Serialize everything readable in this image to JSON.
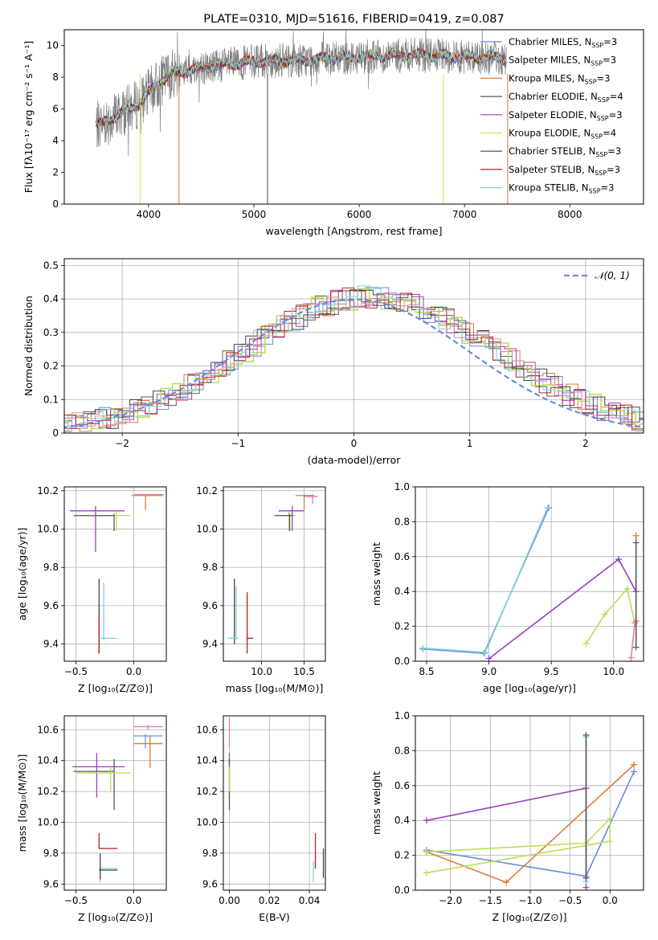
{
  "palette": [
    "#6a8cd8",
    "#8a7fd8",
    "#e07b39",
    "#5a5a5a",
    "#9b3fbf",
    "#d4e157",
    "#444444",
    "#b22222",
    "#7fd3dd",
    "#e27fb0",
    "#b8e05a"
  ],
  "chart_data": [
    {
      "id": "spectrum",
      "type": "line",
      "title": "PLATE=0310, MJD=51616, FIBERID=0419, z=0.087",
      "xlabel": "wavelength [Angstrom, rest frame]",
      "ylabel": "Flux [fλ10⁻¹⁷ erg cm⁻² s⁻¹ A⁻¹]",
      "xlim": [
        3200,
        8700
      ],
      "ylim": [
        0,
        11
      ],
      "xticks": [
        4000,
        5000,
        6000,
        7000,
        8000
      ],
      "yticks": [
        0,
        2,
        4,
        6,
        8,
        10
      ],
      "grid": false,
      "legend_position": "top-right",
      "continuum": [
        [
          3500,
          4.9
        ],
        [
          3700,
          5.6
        ],
        [
          3900,
          6.3
        ],
        [
          4000,
          7.0
        ],
        [
          4200,
          8.2
        ],
        [
          4500,
          8.6
        ],
        [
          5000,
          9.0
        ],
        [
          5500,
          9.1
        ],
        [
          6000,
          9.3
        ],
        [
          6500,
          9.4
        ],
        [
          7000,
          9.3
        ],
        [
          7400,
          9.2
        ]
      ],
      "series": [
        {
          "name": "Chabrier MILES, N_SSP=3",
          "color_index": 0
        },
        {
          "name": "Salpeter MILES, N_SSP=3",
          "color_index": 1
        },
        {
          "name": "Kroupa MILES, N_SSP=3",
          "color_index": 2
        },
        {
          "name": "Chabrier ELODIE, N_SSP=4",
          "color_index": 3
        },
        {
          "name": "Salpeter ELODIE, N_SSP=3",
          "color_index": 4
        },
        {
          "name": "Kroupa ELODIE, N_SSP=4",
          "color_index": 5
        },
        {
          "name": "Chabrier STELIB, N_SSP=3",
          "color_index": 6
        },
        {
          "name": "Salpeter STELIB, N_SSP=3",
          "color_index": 7
        },
        {
          "name": "Kroupa STELIB, N_SSP=3",
          "color_index": 8
        }
      ]
    },
    {
      "id": "residuals",
      "type": "line",
      "xlabel": "(data-model)/error",
      "ylabel": "Normed distribution",
      "xlim": [
        -2.5,
        2.5
      ],
      "ylim": [
        0,
        0.52
      ],
      "xticks": [
        -2,
        -1,
        0,
        1,
        2
      ],
      "yticks": [
        0.0,
        0.1,
        0.2,
        0.3,
        0.4,
        0.5
      ],
      "grid": true,
      "legend_position": "top-right",
      "gaussian_label": "𝒩(0, 1)",
      "gaussian_color": "#6a8cd8"
    },
    {
      "id": "age-Z",
      "type": "scatter",
      "xlabel": "Z [log₁₀(Z/Z⊙)]",
      "ylabel": "age  [log₁₀(age/yr)]",
      "xlim": [
        -0.6,
        0.28
      ],
      "ylim": [
        9.31,
        10.22
      ],
      "xticks": [
        -0.5,
        0.0
      ],
      "yticks": [
        9.4,
        9.6,
        9.8,
        10.0,
        10.2
      ],
      "grid": true,
      "points": [
        {
          "x": -0.33,
          "xlo": -0.55,
          "xhi": -0.08,
          "y": 10.095,
          "ylo": 9.88,
          "yhi": 10.12,
          "c": 4
        },
        {
          "x": -0.15,
          "xlo": -0.5,
          "xhi": -0.03,
          "y": 10.07,
          "ylo": 9.99,
          "yhi": 10.09,
          "c": 10
        },
        {
          "x": -0.17,
          "xlo": -0.52,
          "xhi": -0.17,
          "y": 10.07,
          "ylo": 9.99,
          "yhi": 10.08,
          "c": 3
        },
        {
          "x": 0.1,
          "xlo": -0.02,
          "xhi": 0.25,
          "y": 10.175,
          "ylo": 10.1,
          "yhi": 10.18,
          "c": 2
        },
        {
          "x": 0.12,
          "xlo": 0.0,
          "xhi": 0.26,
          "y": 10.18,
          "ylo": 10.17,
          "yhi": 10.18,
          "c": 9
        },
        {
          "x": -0.3,
          "xlo": -0.3,
          "xhi": -0.3,
          "y": 9.52,
          "ylo": 9.35,
          "yhi": 9.74,
          "c": 6
        },
        {
          "x": -0.3,
          "xlo": -0.3,
          "xhi": -0.3,
          "y": 9.45,
          "ylo": 9.35,
          "yhi": 9.56,
          "c": 7
        },
        {
          "x": -0.26,
          "xlo": -0.3,
          "xhi": -0.14,
          "y": 9.43,
          "ylo": 9.42,
          "yhi": 9.72,
          "c": 8
        }
      ]
    },
    {
      "id": "age-mass",
      "type": "scatter",
      "xlabel": "mass [log₁₀(M/M⊙)]",
      "xlim": [
        9.55,
        10.75
      ],
      "ylim": [
        9.31,
        10.22
      ],
      "xticks": [
        10.0,
        10.5
      ],
      "yticks": [
        9.4,
        9.6,
        9.8,
        10.0,
        10.2
      ],
      "grid": true,
      "points": [
        {
          "x": 10.36,
          "xlo": 10.2,
          "xhi": 10.5,
          "y": 10.095,
          "ylo": 9.99,
          "yhi": 10.12,
          "c": 4
        },
        {
          "x": 10.32,
          "xlo": 10.15,
          "xhi": 10.4,
          "y": 10.07,
          "ylo": 9.99,
          "yhi": 10.09,
          "c": 10
        },
        {
          "x": 10.33,
          "xlo": 10.15,
          "xhi": 10.37,
          "y": 10.07,
          "ylo": 9.99,
          "yhi": 10.08,
          "c": 3
        },
        {
          "x": 10.5,
          "xlo": 10.4,
          "xhi": 10.62,
          "y": 10.175,
          "ylo": 10.1,
          "yhi": 10.18,
          "c": 2
        },
        {
          "x": 10.6,
          "xlo": 10.5,
          "xhi": 10.66,
          "y": 10.17,
          "ylo": 10.13,
          "yhi": 10.18,
          "c": 9
        },
        {
          "x": 9.68,
          "xlo": 9.68,
          "xhi": 9.68,
          "y": 9.55,
          "ylo": 9.4,
          "yhi": 9.74,
          "c": 6
        },
        {
          "x": 9.83,
          "xlo": 9.83,
          "xhi": 9.9,
          "y": 9.43,
          "ylo": 9.35,
          "yhi": 9.67,
          "c": 7
        },
        {
          "x": 9.7,
          "xlo": 9.6,
          "xhi": 9.72,
          "y": 9.43,
          "ylo": 9.42,
          "yhi": 9.7,
          "c": 8
        }
      ]
    },
    {
      "id": "weight-age",
      "type": "line",
      "xlabel": "age  [log₁₀(age/yr)]",
      "ylabel": "mass weight",
      "xlim": [
        8.41,
        10.24
      ],
      "ylim": [
        0.0,
        1.0
      ],
      "xticks": [
        8.5,
        9.0,
        9.5,
        10.0
      ],
      "yticks": [
        0.0,
        0.2,
        0.4,
        0.6,
        0.8,
        1.0
      ],
      "grid": true,
      "lines": [
        {
          "c": 0,
          "pts": [
            [
              8.47,
              0.07
            ],
            [
              8.96,
              0.045
            ],
            [
              9.48,
              0.88
            ]
          ]
        },
        {
          "c": 8,
          "pts": [
            [
              8.47,
              0.075
            ],
            [
              8.97,
              0.05
            ],
            [
              9.47,
              0.88
            ]
          ]
        },
        {
          "c": 4,
          "pts": [
            [
              9.0,
              0.015
            ],
            [
              10.04,
              0.585
            ],
            [
              10.18,
              0.4
            ]
          ]
        },
        {
          "c": 10,
          "pts": [
            [
              9.78,
              0.1
            ],
            [
              9.93,
              0.27
            ],
            [
              10.11,
              0.415
            ],
            [
              10.17,
              0.22
            ]
          ]
        },
        {
          "c": 2,
          "pts": [
            [
              10.18,
              0.72
            ],
            [
              10.18,
              0.23
            ]
          ]
        },
        {
          "c": 9,
          "pts": [
            [
              10.14,
              0.02
            ],
            [
              10.17,
              0.22
            ]
          ]
        },
        {
          "c": 3,
          "pts": [
            [
              10.18,
              0.68
            ],
            [
              10.18,
              0.08
            ]
          ]
        }
      ]
    },
    {
      "id": "mass-Z",
      "type": "scatter",
      "xlabel": "Z [log₁₀(Z/Z⊙)]",
      "ylabel": "mass [log₁₀(M/M⊙)]",
      "xlim": [
        -0.6,
        0.28
      ],
      "ylim": [
        9.56,
        10.69
      ],
      "xticks": [
        -0.5,
        0.0
      ],
      "yticks": [
        9.6,
        9.8,
        10.0,
        10.2,
        10.4,
        10.6
      ],
      "grid": true,
      "points": [
        {
          "x": -0.32,
          "xlo": -0.53,
          "xhi": -0.08,
          "y": 10.36,
          "ylo": 10.16,
          "yhi": 10.45,
          "c": 4
        },
        {
          "x": -0.17,
          "xlo": -0.52,
          "xhi": -0.17,
          "y": 10.33,
          "ylo": 10.08,
          "yhi": 10.41,
          "c": 3
        },
        {
          "x": -0.2,
          "xlo": -0.5,
          "xhi": -0.03,
          "y": 10.32,
          "ylo": 10.2,
          "yhi": 10.36,
          "c": 10
        },
        {
          "x": 0.1,
          "xlo": 0.0,
          "xhi": 0.25,
          "y": 10.56,
          "ylo": 10.48,
          "yhi": 10.57,
          "c": 0
        },
        {
          "x": 0.14,
          "xlo": 0.0,
          "xhi": 0.25,
          "y": 10.51,
          "ylo": 10.35,
          "yhi": 10.56,
          "c": 2
        },
        {
          "x": 0.12,
          "xlo": 0.0,
          "xhi": 0.25,
          "y": 10.62,
          "ylo": 10.6,
          "yhi": 10.63,
          "c": 9
        },
        {
          "x": -0.3,
          "xlo": -0.3,
          "xhi": -0.14,
          "y": 9.83,
          "ylo": 9.83,
          "yhi": 9.93,
          "c": 7
        },
        {
          "x": -0.29,
          "xlo": -0.3,
          "xhi": -0.14,
          "y": 9.7,
          "ylo": 9.61,
          "yhi": 9.72,
          "c": 8
        },
        {
          "x": -0.29,
          "xlo": -0.3,
          "xhi": -0.14,
          "y": 9.69,
          "ylo": 9.63,
          "yhi": 9.8,
          "c": 6
        }
      ]
    },
    {
      "id": "mass-EBV",
      "type": "scatter",
      "xlabel": "E(B-V)",
      "xlim": [
        -0.003,
        0.048
      ],
      "ylim": [
        9.56,
        10.69
      ],
      "xticks": [
        0.0,
        0.02,
        0.04
      ],
      "yticks": [
        9.6,
        9.8,
        10.0,
        10.2,
        10.4,
        10.6
      ],
      "grid": true,
      "points": [
        {
          "x": 0.0,
          "xlo": 0.0,
          "xhi": 0.0,
          "y": 10.36,
          "ylo": 10.16,
          "yhi": 10.45,
          "c": 4
        },
        {
          "x": 0.0,
          "xlo": 0.0,
          "xhi": 0.0,
          "y": 10.33,
          "ylo": 10.08,
          "yhi": 10.41,
          "c": 3
        },
        {
          "x": 0.0,
          "xlo": 0.0,
          "xhi": 0.0,
          "y": 10.56,
          "ylo": 10.48,
          "yhi": 10.68,
          "c": 9
        },
        {
          "x": 0.0,
          "xlo": 0.0,
          "xhi": 0.0,
          "y": 10.3,
          "ylo": 10.2,
          "yhi": 10.36,
          "c": 10
        },
        {
          "x": 0.043,
          "xlo": 0.043,
          "xhi": 0.043,
          "y": 9.83,
          "ylo": 9.7,
          "yhi": 9.93,
          "c": 7
        },
        {
          "x": 0.047,
          "xlo": 0.047,
          "xhi": 0.047,
          "y": 9.7,
          "ylo": 9.64,
          "yhi": 9.83,
          "c": 6
        },
        {
          "x": 0.042,
          "xlo": 0.042,
          "xhi": 0.042,
          "y": 9.7,
          "ylo": 9.61,
          "yhi": 9.75,
          "c": 8
        }
      ]
    },
    {
      "id": "weight-Z",
      "type": "line",
      "xlabel": "Z [log₁₀(Z/Z⊙)]",
      "ylabel": "mass weight",
      "xlim": [
        -2.44,
        0.42
      ],
      "ylim": [
        0.0,
        1.0
      ],
      "xticks": [
        -2.0,
        -1.5,
        -1.0,
        -0.5,
        0.0
      ],
      "yticks": [
        0.0,
        0.2,
        0.4,
        0.6,
        0.8,
        1.0
      ],
      "grid": true,
      "lines": [
        {
          "c": 0,
          "pts": [
            [
              -2.3,
              0.23
            ],
            [
              -0.3,
              0.08
            ],
            [
              0.3,
              0.68
            ]
          ]
        },
        {
          "c": 4,
          "pts": [
            [
              -2.3,
              0.4
            ],
            [
              -0.3,
              0.585
            ],
            [
              -0.3,
              0.015
            ]
          ]
        },
        {
          "c": 2,
          "pts": [
            [
              -2.3,
              0.22
            ],
            [
              -1.3,
              0.045
            ],
            [
              0.3,
              0.72
            ]
          ]
        },
        {
          "c": 10,
          "pts": [
            [
              -2.3,
              0.1
            ],
            [
              0.0,
              0.28
            ],
            [
              0.0,
              0.41
            ],
            [
              -0.3,
              0.27
            ],
            [
              -2.3,
              0.22
            ]
          ]
        },
        {
          "c": 8,
          "pts": [
            [
              -0.3,
              0.88
            ],
            [
              -0.3,
              0.05
            ]
          ]
        },
        {
          "c": 3,
          "pts": [
            [
              -0.3,
              0.89
            ],
            [
              -0.3,
              0.07
            ]
          ]
        }
      ]
    }
  ]
}
